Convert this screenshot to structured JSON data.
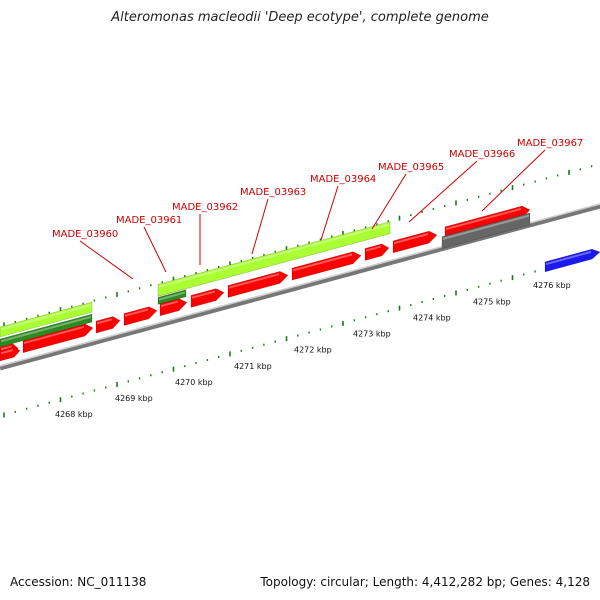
{
  "title": "Alteromonas macleodii 'Deep ecotype', complete genome",
  "footer": {
    "accession": "Accession: NC_011138",
    "stats": "Topology: circular; Length: 4,412,282 bp; Genes: 4,128"
  },
  "colors": {
    "cds": "#ff0000",
    "gene_green": "#aaff33",
    "gene_dark_green": "#2e8b22",
    "gray_feature": "#666666",
    "blue_feature": "#1a1aee",
    "backbone": "#888888",
    "tick": "#1a7a1a",
    "label": "#cc0000"
  },
  "genes": [
    {
      "name": "MADE_03960"
    },
    {
      "name": "MADE_03961"
    },
    {
      "name": "MADE_03962"
    },
    {
      "name": "MADE_03963"
    },
    {
      "name": "MADE_03964"
    },
    {
      "name": "MADE_03965"
    },
    {
      "name": "MADE_03966"
    },
    {
      "name": "MADE_03967"
    }
  ],
  "ruler": {
    "labels": [
      "4268 kbp",
      "4269 kbp",
      "4270 kbp",
      "4271 kbp",
      "4272 kbp",
      "4273 kbp",
      "4274 kbp",
      "4275 kbp",
      "4276 kbp"
    ]
  }
}
